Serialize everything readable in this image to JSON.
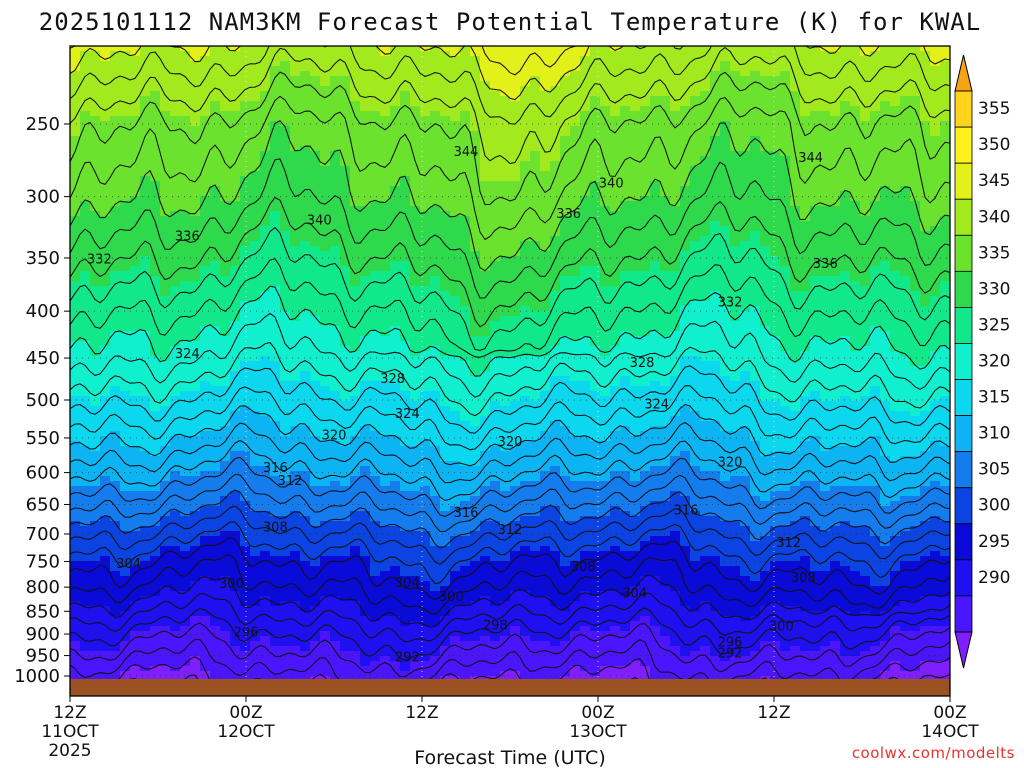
{
  "chart_data": {
    "type": "heatmap",
    "title": "2025101112 NAM3KM Forecast Potential Temperature (K) for KWAL",
    "xlabel": "Forecast Time (UTC)",
    "ylabel": "",
    "watermark": "coolwx.com/modelts",
    "x_ticks": [
      {
        "hour": 0,
        "line1": "12Z",
        "line2": "11OCT",
        "line3": "2025"
      },
      {
        "hour": 12,
        "line1": "00Z",
        "line2": "12OCT",
        "line3": ""
      },
      {
        "hour": 24,
        "line1": "12Z",
        "line2": "",
        "line3": ""
      },
      {
        "hour": 36,
        "line1": "00Z",
        "line2": "13OCT",
        "line3": ""
      },
      {
        "hour": 48,
        "line1": "12Z",
        "line2": "",
        "line3": ""
      },
      {
        "hour": 60,
        "line1": "00Z",
        "line2": "14OCT",
        "line3": ""
      }
    ],
    "xlim_hours": [
      0,
      60
    ],
    "y_pressure_ticks": [
      250,
      300,
      350,
      400,
      450,
      500,
      550,
      600,
      650,
      700,
      750,
      800,
      850,
      900,
      950,
      1000
    ],
    "ylim_hPa": [
      200,
      1020
    ],
    "colorbar": {
      "levels": [
        290,
        295,
        300,
        305,
        310,
        315,
        320,
        325,
        330,
        335,
        340,
        345,
        350,
        355
      ],
      "colors": [
        "#7f1fff",
        "#4b16ff",
        "#1f10f2",
        "#0a0bd8",
        "#0b44e2",
        "#157cee",
        "#0db4f4",
        "#0bd8ef",
        "#10f0cf",
        "#11e88a",
        "#2ed94c",
        "#6be22e",
        "#a2ea1e",
        "#e3f01a",
        "#fff21a",
        "#ffd41a",
        "#f5a416"
      ]
    },
    "contour_levels": [
      288,
      290,
      292,
      294,
      296,
      298,
      300,
      302,
      304,
      306,
      308,
      310,
      312,
      314,
      316,
      318,
      320,
      322,
      324,
      326,
      328,
      330,
      332,
      334,
      336,
      338,
      340,
      342,
      344,
      346,
      348,
      350,
      352
    ],
    "profile_pressures": [
      1000,
      950,
      900,
      850,
      800,
      750,
      700,
      650,
      600,
      550,
      500,
      450,
      400,
      350,
      300,
      250,
      200
    ],
    "profile_theta_base": [
      291,
      293.5,
      296,
      299,
      302,
      304.5,
      308,
      312,
      316,
      320,
      324,
      328,
      331.5,
      335.5,
      339.5,
      343,
      350
    ],
    "contour_labels": [
      {
        "value": "344",
        "hour": 27.0,
        "p": 268
      },
      {
        "value": "344",
        "hour": 50.5,
        "p": 272
      },
      {
        "value": "340",
        "hour": 36.9,
        "p": 290
      },
      {
        "value": "340",
        "hour": 17.0,
        "p": 318
      },
      {
        "value": "336",
        "hour": 34.0,
        "p": 313
      },
      {
        "value": "336",
        "hour": 8.0,
        "p": 331
      },
      {
        "value": "336",
        "hour": 51.5,
        "p": 355
      },
      {
        "value": "332",
        "hour": 2.0,
        "p": 351
      },
      {
        "value": "332",
        "hour": 45.0,
        "p": 391
      },
      {
        "value": "328",
        "hour": 39.0,
        "p": 455
      },
      {
        "value": "328",
        "hour": 22.0,
        "p": 474
      },
      {
        "value": "324",
        "hour": 8.0,
        "p": 445
      },
      {
        "value": "324",
        "hour": 40.0,
        "p": 505
      },
      {
        "value": "324",
        "hour": 23.0,
        "p": 517
      },
      {
        "value": "320",
        "hour": 18.0,
        "p": 546
      },
      {
        "value": "320",
        "hour": 30.0,
        "p": 555
      },
      {
        "value": "320",
        "hour": 45.0,
        "p": 584
      },
      {
        "value": "316",
        "hour": 14.0,
        "p": 592
      },
      {
        "value": "316",
        "hour": 27.0,
        "p": 663
      },
      {
        "value": "316",
        "hour": 42.0,
        "p": 659
      },
      {
        "value": "312",
        "hour": 15.0,
        "p": 612
      },
      {
        "value": "312",
        "hour": 30.0,
        "p": 692
      },
      {
        "value": "312",
        "hour": 49.0,
        "p": 715
      },
      {
        "value": "308",
        "hour": 14.0,
        "p": 688
      },
      {
        "value": "308",
        "hour": 35.0,
        "p": 760
      },
      {
        "value": "308",
        "hour": 50.0,
        "p": 781
      },
      {
        "value": "304",
        "hour": 4.0,
        "p": 754
      },
      {
        "value": "304",
        "hour": 23.0,
        "p": 791
      },
      {
        "value": "304",
        "hour": 38.5,
        "p": 812
      },
      {
        "value": "300",
        "hour": 11.0,
        "p": 793
      },
      {
        "value": "300",
        "hour": 26.0,
        "p": 819
      },
      {
        "value": "300",
        "hour": 48.5,
        "p": 882
      },
      {
        "value": "298",
        "hour": 29.0,
        "p": 880
      },
      {
        "value": "296",
        "hour": 12.0,
        "p": 895
      },
      {
        "value": "296",
        "hour": 45.0,
        "p": 918
      },
      {
        "value": "292",
        "hour": 23.0,
        "p": 954
      },
      {
        "value": "292",
        "hour": 45.0,
        "p": 944
      }
    ]
  }
}
